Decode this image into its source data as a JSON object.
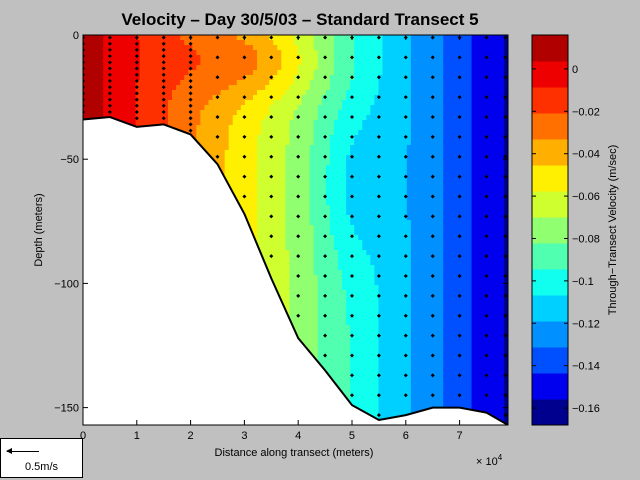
{
  "chart_data": {
    "type": "heatmap",
    "title": "Velocity – Day 30/5/03 – Standard Transect 5",
    "xlabel": "Distance along transect (meters)",
    "x_multiplier": "× 10",
    "x_multiplier_exponent": "4",
    "ylabel": "Depth (meters)",
    "xlim": [
      0,
      7.9
    ],
    "ylim": [
      -157,
      0
    ],
    "xticks": [
      "0",
      "1",
      "2",
      "3",
      "4",
      "5",
      "6",
      "7"
    ],
    "yticks": [
      "0",
      "−50",
      "−100",
      "−150"
    ],
    "colorbar": {
      "label": "Through−Transect Velocity (m/sec)",
      "clim": [
        -0.168,
        0.016
      ],
      "ticks": [
        {
          "value": 0,
          "label": "0"
        },
        {
          "value": -0.02,
          "label": "−0.02"
        },
        {
          "value": -0.04,
          "label": "−0.04"
        },
        {
          "value": -0.06,
          "label": "−0.06"
        },
        {
          "value": -0.08,
          "label": "−0.08"
        },
        {
          "value": -0.1,
          "label": "−0.1"
        },
        {
          "value": -0.12,
          "label": "−0.12"
        },
        {
          "value": -0.14,
          "label": "−0.14"
        },
        {
          "value": -0.16,
          "label": "−0.16"
        }
      ],
      "colors": [
        "#00008f",
        "#0000ef",
        "#0050ff",
        "#0090ff",
        "#00d0ff",
        "#10ffef",
        "#50ffaf",
        "#90ff70",
        "#d0ff30",
        "#ffef00",
        "#ffaf00",
        "#ff7000",
        "#ff3000",
        "#ef0000",
        "#b00000"
      ]
    },
    "bottom_profile": [
      [
        0,
        -34
      ],
      [
        0.5,
        -33
      ],
      [
        1,
        -37
      ],
      [
        1.5,
        -36
      ],
      [
        2,
        -40
      ],
      [
        2.5,
        -52
      ],
      [
        3,
        -72
      ],
      [
        3.5,
        -98
      ],
      [
        4,
        -122
      ],
      [
        4.5,
        -135
      ],
      [
        5,
        -149
      ],
      [
        5.5,
        -155
      ],
      [
        6,
        -153
      ],
      [
        6.5,
        -150
      ],
      [
        7,
        -150
      ],
      [
        7.5,
        -152
      ],
      [
        7.9,
        -157
      ]
    ],
    "profile_stations": [
      0,
      0.5,
      1,
      1.5,
      2,
      2.5,
      3,
      3.5,
      4,
      4.5,
      5,
      5.5,
      6,
      6.5,
      7,
      7.5,
      7.85
    ]
  },
  "scale_legend": {
    "label": "0.5m/s"
  }
}
